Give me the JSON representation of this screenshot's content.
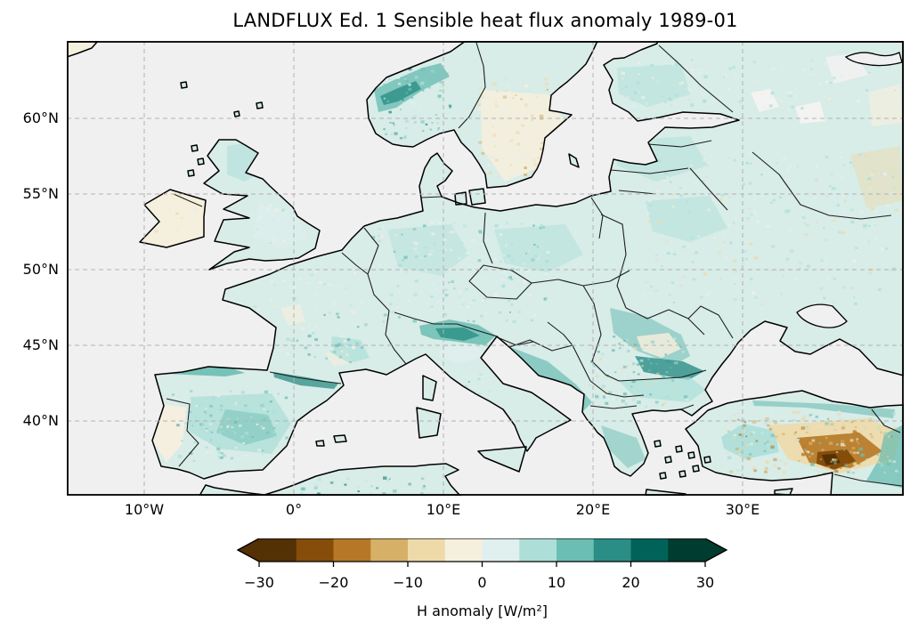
{
  "figure": {
    "title": "LANDFLUX Ed. 1 Sensible heat flux anomaly 1989-01"
  },
  "map": {
    "x_tick_labels": [
      "10°W",
      "0°",
      "10°E",
      "20°E",
      "30°E"
    ],
    "y_tick_labels": [
      "60°N",
      "55°N",
      "50°N",
      "45°N",
      "40°N"
    ],
    "ocean_color": "#f0f0f0",
    "land_base_color": "#d8ece8",
    "coastline_color": "#000000",
    "border_color": "#141414",
    "gridline_color": "#b2b2b2"
  },
  "colorbar": {
    "label": "H anomaly [W/m²]",
    "tick_labels": [
      "−30",
      "−20",
      "−10",
      "0",
      "10",
      "20",
      "30"
    ],
    "segment_colors": [
      "#543005",
      "#854d09",
      "#b67827",
      "#d6b067",
      "#eedaa9",
      "#f5efde",
      "#e0f0ee",
      "#addfd8",
      "#6bbeb3",
      "#2b8e86",
      "#01625a",
      "#003c30"
    ],
    "under_color": "#543005",
    "over_color": "#003c30"
  },
  "chart_data": {
    "type": "heatmap",
    "title": "LANDFLUX Ed. 1 Sensible heat flux anomaly 1989-01",
    "dataset": "LANDFLUX Ed. 1",
    "variable": "H (sensible heat flux) anomaly",
    "unit": "W/m²",
    "time": "1989-01",
    "region": "Europe",
    "colormap": "BrBG diverging brown–teal, 12 discrete bands of 5 W/m²",
    "levels": [
      -30,
      -25,
      -20,
      -15,
      -10,
      -5,
      0,
      5,
      10,
      15,
      20,
      25,
      30
    ],
    "colorbar_extend": "both",
    "colorbar_ticks": [
      -30,
      -20,
      -10,
      0,
      10,
      20,
      30
    ],
    "x_ticks": [
      "10°W",
      "0°",
      "10°E",
      "20°E",
      "30°E"
    ],
    "y_ticks": [
      "60°N",
      "55°N",
      "50°N",
      "45°N",
      "40°N"
    ],
    "lon_range": [
      -15.2,
      40.8
    ],
    "lat_range": [
      35.0,
      65.1
    ],
    "grid": "dashed gray graticule, 10° longitude × 5° latitude",
    "ocean_masked": true,
    "regional_values_wm2": [
      {
        "region": "most of continental Europe lowlands",
        "value": 4
      },
      {
        "region": "Norway west coast / Scandes",
        "value": 10
      },
      {
        "region": "Alps",
        "value": 13
      },
      {
        "region": "Pyrenees and Cantabrian mountains",
        "value": 12
      },
      {
        "region": "central Spain",
        "value": 8
      },
      {
        "region": "Dinaric Alps / western Balkans",
        "value": 8
      },
      {
        "region": "southern Carpathians (Romania)",
        "value": 12
      },
      {
        "region": "western and coastal Turkey",
        "value": 6
      },
      {
        "region": "Ireland",
        "value": -3
      },
      {
        "region": "Portugal",
        "value": -3
      },
      {
        "region": "southern Sweden",
        "value": -4
      },
      {
        "region": "Transylvania (Romania)",
        "value": -5
      },
      {
        "region": "far-eastern Ukraine / Russia edge",
        "value": -5
      },
      {
        "region": "central Anatolia (Turkey)",
        "value": -22
      },
      {
        "region": "eastern Anatolia highlands",
        "value": -12
      },
      {
        "region": "seas and oceans",
        "value": null
      }
    ]
  }
}
